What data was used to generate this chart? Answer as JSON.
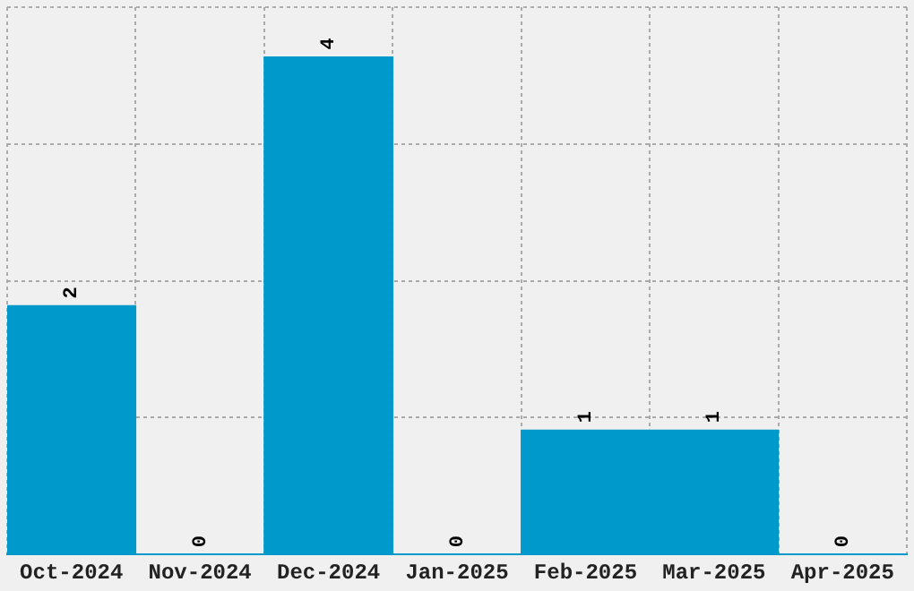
{
  "chart_data": {
    "type": "bar",
    "categories": [
      "Oct-2024",
      "Nov-2024",
      "Dec-2024",
      "Jan-2025",
      "Feb-2025",
      "Mar-2025",
      "Apr-2025"
    ],
    "series": [
      {
        "color": "#0099cc",
        "values": [
          2,
          0,
          4,
          0,
          1,
          1,
          0
        ]
      }
    ],
    "ylim": [
      0,
      4.4
    ],
    "yticks": [
      {
        "value": 0,
        "label": null
      },
      {
        "value": 1.1,
        "label": null
      },
      {
        "value": 2.2,
        "label": null
      },
      {
        "value": 3.3,
        "label": null
      },
      {
        "value": 4.4,
        "label": null
      }
    ],
    "tick_labels": "x",
    "grid": true,
    "legend": false,
    "data_labels": true
  }
}
